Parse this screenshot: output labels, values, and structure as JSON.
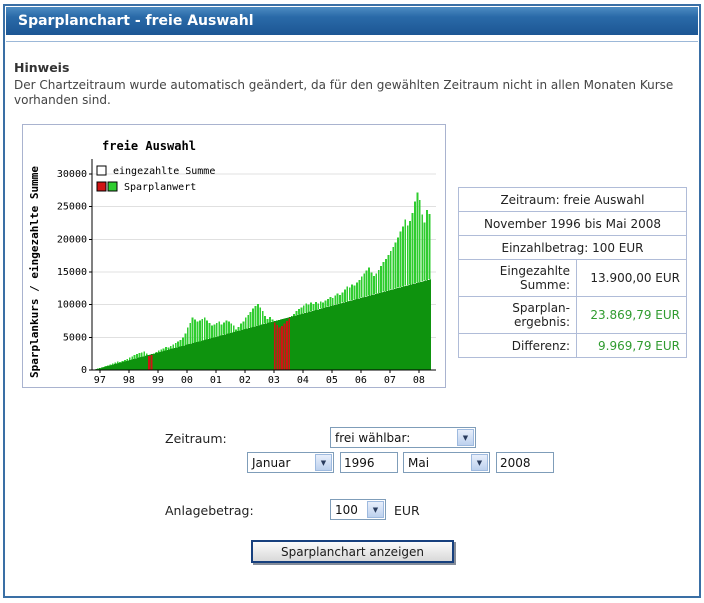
{
  "page": {
    "title": "Sparplanchart - freie Auswahl"
  },
  "ui_colors": {
    "header-top": "#4d8cc2",
    "header-bottom": "#1c5694",
    "frame-border": "#3a6fa5",
    "positive-green": "#2f9b2f",
    "table-border": "#b0bcd8"
  },
  "notice": {
    "heading": "Hinweis",
    "body": "Der Chartzeitraum wurde automatisch geändert, da für den gewählten Zeitraum nicht in allen Monaten Kurse vorhanden sind."
  },
  "summary_table": {
    "rows": [
      {
        "label": "Zeitraum: freie Auswahl"
      },
      {
        "label": "November 1996 bis Mai 2008"
      },
      {
        "label": "Einzahlbetrag: 100 EUR"
      },
      {
        "label": "Eingezahlte Summe:",
        "value": "13.900,00 EUR"
      },
      {
        "label": "Sparplan-\nergebnis:",
        "value": "23.869,79 EUR"
      },
      {
        "label": "Differenz:",
        "value": "9.969,79 EUR"
      }
    ]
  },
  "form": {
    "zeitraum_label": "Zeitraum:",
    "zeitraum_select": "frei wählbar:",
    "from_month": "Januar",
    "from_year": "1996",
    "to_month": "Mai",
    "to_year": "2008",
    "anlagebetrag_label": "Anlagebetrag:",
    "anlagebetrag_select": "100",
    "currency": "EUR",
    "submit_label": "Sparplanchart anzeigen"
  },
  "chart_data": {
    "type": "bar",
    "title": "freie Auswahl",
    "ylabel": "Sparplankurs / eingezahlte Summe",
    "ylim": [
      0,
      30000
    ],
    "ytick_step": 5000,
    "x_start": "1996-11",
    "x_end": "2008-05",
    "xtick_labels": [
      "97",
      "98",
      "99",
      "00",
      "01",
      "02",
      "03",
      "04",
      "05",
      "06",
      "07",
      "08"
    ],
    "xtick_month_indices": [
      2,
      14,
      26,
      38,
      50,
      62,
      74,
      86,
      98,
      110,
      122,
      134
    ],
    "monthly_payment": 100,
    "paid_total": 13900,
    "final_value": 23869.79,
    "legend": [
      {
        "label": "eingezahlte Summe",
        "swatches": [
          "#ffffff"
        ]
      },
      {
        "label": "Sparplanwert",
        "swatches": [
          "#d01414",
          "#2fcc2f"
        ]
      }
    ],
    "colors": {
      "bar_above": "#2fcc2f",
      "bar_below": "#d01414",
      "paid_area": "#0e930e"
    },
    "series": [
      {
        "name": "eingezahlte Summe",
        "note": "linear monthly deposits, 100 EUR per month, 100 to 13900"
      },
      {
        "name": "Sparplanwert",
        "values": [
          100,
          210,
          330,
          450,
          580,
          700,
          850,
          980,
          1150,
          1280,
          1240,
          1380,
          1520,
          1680,
          1880,
          2080,
          2320,
          2480,
          2590,
          2700,
          2850,
          2500,
          2150,
          2300,
          2520,
          2750,
          2950,
          3100,
          3300,
          3500,
          3450,
          3700,
          3900,
          4100,
          4350,
          4600,
          5000,
          5600,
          6500,
          7200,
          8000,
          7700,
          7400,
          7600,
          7800,
          8000,
          7600,
          7200,
          6800,
          7000,
          7200,
          7400,
          7000,
          7300,
          7600,
          7400,
          7100,
          6800,
          6200,
          6600,
          7100,
          7400,
          8000,
          8400,
          8900,
          9400,
          9800,
          10100,
          9600,
          9000,
          8300,
          7800,
          8100,
          7700,
          7300,
          6900,
          6500,
          6700,
          7100,
          7500,
          7900,
          8300,
          8600,
          9000,
          9300,
          9600,
          9900,
          10200,
          10000,
          10300,
          10100,
          10400,
          10200,
          10500,
          10300,
          10600,
          10900,
          11200,
          11000,
          11400,
          11700,
          11500,
          11900,
          12300,
          12800,
          12600,
          13100,
          12900,
          13400,
          13800,
          14300,
          14800,
          15200,
          15700,
          14900,
          14400,
          14800,
          15300,
          15900,
          16500,
          17000,
          17600,
          18200,
          18800,
          19500,
          20300,
          21200,
          22000,
          23000,
          22100,
          22800,
          24000,
          25800,
          27200,
          26000,
          23800,
          22600,
          24500,
          23869.79
        ]
      }
    ]
  }
}
